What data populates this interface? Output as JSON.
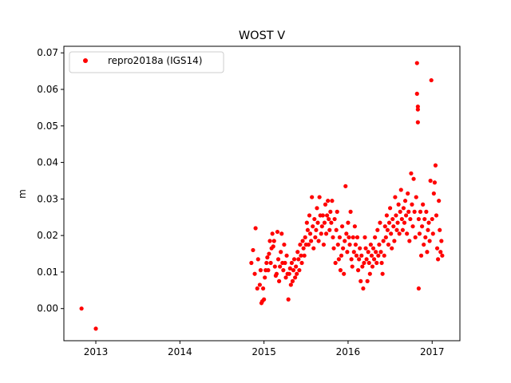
{
  "chart_data": {
    "type": "scatter",
    "title": "WOST V",
    "xlabel": "",
    "ylabel": "m",
    "xlim": [
      2012.62,
      2017.33
    ],
    "ylim": [
      -0.0088,
      0.0718
    ],
    "xticks": [
      2013,
      2014,
      2015,
      2016,
      2017
    ],
    "xtick_labels": [
      "2013",
      "2014",
      "2015",
      "2016",
      "2017"
    ],
    "yticks": [
      0.0,
      0.01,
      0.02,
      0.03,
      0.04,
      0.05,
      0.06,
      0.07
    ],
    "ytick_labels": [
      "0.00",
      "0.01",
      "0.02",
      "0.03",
      "0.04",
      "0.05",
      "0.06",
      "0.07"
    ],
    "grid": false,
    "legend_position": "top-left",
    "colors": {
      "series": "#ff0000",
      "axis": "#000000"
    },
    "series": [
      {
        "name": "repro2018a (IGS14)",
        "marker": "circle",
        "points": [
          [
            2012.83,
            0.0
          ],
          [
            2013.0,
            -0.0055
          ],
          [
            2014.85,
            0.0125
          ],
          [
            2014.87,
            0.016
          ],
          [
            2014.89,
            0.0095
          ],
          [
            2014.9,
            0.022
          ],
          [
            2014.92,
            0.0055
          ],
          [
            2014.93,
            0.0135
          ],
          [
            2014.95,
            0.0065
          ],
          [
            2014.96,
            0.0105
          ],
          [
            2014.97,
            0.0015
          ],
          [
            2014.98,
            0.002
          ],
          [
            2014.99,
            0.0055
          ],
          [
            2015.0,
            0.0025
          ],
          [
            2015.01,
            0.0085
          ],
          [
            2015.02,
            0.0105
          ],
          [
            2015.03,
            0.0125
          ],
          [
            2015.04,
            0.014
          ],
          [
            2015.05,
            0.0105
          ],
          [
            2015.06,
            0.015
          ],
          [
            2015.07,
            0.0185
          ],
          [
            2015.08,
            0.0125
          ],
          [
            2015.09,
            0.0165
          ],
          [
            2015.1,
            0.0205
          ],
          [
            2015.11,
            0.017
          ],
          [
            2015.12,
            0.0185
          ],
          [
            2015.13,
            0.0115
          ],
          [
            2015.14,
            0.009
          ],
          [
            2015.15,
            0.0095
          ],
          [
            2015.16,
            0.021
          ],
          [
            2015.17,
            0.0135
          ],
          [
            2015.18,
            0.0075
          ],
          [
            2015.19,
            0.0115
          ],
          [
            2015.2,
            0.0155
          ],
          [
            2015.21,
            0.0205
          ],
          [
            2015.22,
            0.0125
          ],
          [
            2015.23,
            0.0105
          ],
          [
            2015.24,
            0.0175
          ],
          [
            2015.25,
            0.0125
          ],
          [
            2015.26,
            0.0085
          ],
          [
            2015.27,
            0.0145
          ],
          [
            2015.28,
            0.0095
          ],
          [
            2015.29,
            0.0025
          ],
          [
            2015.3,
            0.0095
          ],
          [
            2015.31,
            0.011
          ],
          [
            2015.32,
            0.0065
          ],
          [
            2015.33,
            0.0125
          ],
          [
            2015.34,
            0.0075
          ],
          [
            2015.35,
            0.0105
          ],
          [
            2015.36,
            0.0135
          ],
          [
            2015.37,
            0.0085
          ],
          [
            2015.38,
            0.0115
          ],
          [
            2015.39,
            0.0095
          ],
          [
            2015.4,
            0.0155
          ],
          [
            2015.41,
            0.0135
          ],
          [
            2015.42,
            0.0105
          ],
          [
            2015.43,
            0.0175
          ],
          [
            2015.44,
            0.0145
          ],
          [
            2015.45,
            0.0125
          ],
          [
            2015.46,
            0.0185
          ],
          [
            2015.47,
            0.0165
          ],
          [
            2015.48,
            0.0145
          ],
          [
            2015.49,
            0.0195
          ],
          [
            2015.5,
            0.0175
          ],
          [
            2015.51,
            0.0235
          ],
          [
            2015.52,
            0.0215
          ],
          [
            2015.53,
            0.0175
          ],
          [
            2015.54,
            0.0255
          ],
          [
            2015.55,
            0.0205
          ],
          [
            2015.56,
            0.0185
          ],
          [
            2015.57,
            0.0305
          ],
          [
            2015.58,
            0.0225
          ],
          [
            2015.59,
            0.0165
          ],
          [
            2015.6,
            0.0245
          ],
          [
            2015.61,
            0.0195
          ],
          [
            2015.62,
            0.0215
          ],
          [
            2015.63,
            0.0275
          ],
          [
            2015.64,
            0.0235
          ],
          [
            2015.65,
            0.0185
          ],
          [
            2015.66,
            0.0305
          ],
          [
            2015.67,
            0.0255
          ],
          [
            2015.68,
            0.0205
          ],
          [
            2015.69,
            0.0225
          ],
          [
            2015.7,
            0.0255
          ],
          [
            2015.71,
            0.0175
          ],
          [
            2015.72,
            0.0235
          ],
          [
            2015.73,
            0.0285
          ],
          [
            2015.74,
            0.0205
          ],
          [
            2015.75,
            0.0255
          ],
          [
            2015.76,
            0.0295
          ],
          [
            2015.77,
            0.0245
          ],
          [
            2015.78,
            0.0215
          ],
          [
            2015.79,
            0.0265
          ],
          [
            2015.8,
            0.0235
          ],
          [
            2015.81,
            0.0295
          ],
          [
            2015.82,
            0.0195
          ],
          [
            2015.83,
            0.0165
          ],
          [
            2015.84,
            0.0245
          ],
          [
            2015.85,
            0.0125
          ],
          [
            2015.86,
            0.0215
          ],
          [
            2015.87,
            0.0265
          ],
          [
            2015.88,
            0.0175
          ],
          [
            2015.89,
            0.0135
          ],
          [
            2015.9,
            0.0195
          ],
          [
            2015.91,
            0.0105
          ],
          [
            2015.92,
            0.0145
          ],
          [
            2015.93,
            0.0225
          ],
          [
            2015.94,
            0.0165
          ],
          [
            2015.95,
            0.0095
          ],
          [
            2015.96,
            0.0185
          ],
          [
            2015.97,
            0.0335
          ],
          [
            2015.98,
            0.0205
          ],
          [
            2015.99,
            0.0155
          ],
          [
            2016.0,
            0.0235
          ],
          [
            2016.01,
            0.0195
          ],
          [
            2016.02,
            0.0175
          ],
          [
            2016.03,
            0.0265
          ],
          [
            2016.04,
            0.0135
          ],
          [
            2016.05,
            0.0115
          ],
          [
            2016.06,
            0.0195
          ],
          [
            2016.07,
            0.0155
          ],
          [
            2016.08,
            0.0225
          ],
          [
            2016.09,
            0.0175
          ],
          [
            2016.1,
            0.0145
          ],
          [
            2016.11,
            0.0195
          ],
          [
            2016.12,
            0.0105
          ],
          [
            2016.13,
            0.0135
          ],
          [
            2016.14,
            0.0165
          ],
          [
            2016.15,
            0.0075
          ],
          [
            2016.16,
            0.0145
          ],
          [
            2016.17,
            0.0115
          ],
          [
            2016.18,
            0.0055
          ],
          [
            2016.19,
            0.0125
          ],
          [
            2016.2,
            0.0195
          ],
          [
            2016.21,
            0.0165
          ],
          [
            2016.22,
            0.0135
          ],
          [
            2016.23,
            0.0075
          ],
          [
            2016.24,
            0.0155
          ],
          [
            2016.25,
            0.0125
          ],
          [
            2016.26,
            0.0095
          ],
          [
            2016.27,
            0.0175
          ],
          [
            2016.28,
            0.0145
          ],
          [
            2016.29,
            0.0115
          ],
          [
            2016.3,
            0.0165
          ],
          [
            2016.31,
            0.0135
          ],
          [
            2016.32,
            0.0195
          ],
          [
            2016.33,
            0.0155
          ],
          [
            2016.34,
            0.0125
          ],
          [
            2016.35,
            0.0215
          ],
          [
            2016.36,
            0.0145
          ],
          [
            2016.37,
            0.0175
          ],
          [
            2016.38,
            0.0235
          ],
          [
            2016.39,
            0.0155
          ],
          [
            2016.4,
            0.0125
          ],
          [
            2016.41,
            0.0095
          ],
          [
            2016.42,
            0.0185
          ],
          [
            2016.43,
            0.0145
          ],
          [
            2016.44,
            0.0225
          ],
          [
            2016.45,
            0.0195
          ],
          [
            2016.46,
            0.0255
          ],
          [
            2016.47,
            0.0215
          ],
          [
            2016.48,
            0.0175
          ],
          [
            2016.49,
            0.0235
          ],
          [
            2016.5,
            0.0275
          ],
          [
            2016.51,
            0.0205
          ],
          [
            2016.52,
            0.0165
          ],
          [
            2016.53,
            0.0245
          ],
          [
            2016.54,
            0.0225
          ],
          [
            2016.55,
            0.0185
          ],
          [
            2016.56,
            0.0305
          ],
          [
            2016.57,
            0.0255
          ],
          [
            2016.58,
            0.0215
          ],
          [
            2016.59,
            0.0235
          ],
          [
            2016.6,
            0.0285
          ],
          [
            2016.61,
            0.0205
          ],
          [
            2016.62,
            0.0265
          ],
          [
            2016.63,
            0.0325
          ],
          [
            2016.64,
            0.0245
          ],
          [
            2016.65,
            0.0215
          ],
          [
            2016.66,
            0.0275
          ],
          [
            2016.67,
            0.0235
          ],
          [
            2016.68,
            0.0295
          ],
          [
            2016.69,
            0.0255
          ],
          [
            2016.7,
            0.0205
          ],
          [
            2016.71,
            0.0315
          ],
          [
            2016.72,
            0.0265
          ],
          [
            2016.73,
            0.0185
          ],
          [
            2016.74,
            0.0245
          ],
          [
            2016.75,
            0.037
          ],
          [
            2016.76,
            0.0285
          ],
          [
            2016.77,
            0.0225
          ],
          [
            2016.78,
            0.0355
          ],
          [
            2016.79,
            0.0265
          ],
          [
            2016.8,
            0.0195
          ],
          [
            2016.81,
            0.0305
          ],
          [
            2016.82,
            0.0588
          ],
          [
            2016.82,
            0.0672
          ],
          [
            2016.83,
            0.0545
          ],
          [
            2016.83,
            0.0553
          ],
          [
            2016.83,
            0.051
          ],
          [
            2016.84,
            0.0055
          ],
          [
            2016.84,
            0.0245
          ],
          [
            2016.85,
            0.0205
          ],
          [
            2016.86,
            0.0265
          ],
          [
            2016.87,
            0.0145
          ],
          [
            2016.88,
            0.0225
          ],
          [
            2016.89,
            0.0285
          ],
          [
            2016.9,
            0.0175
          ],
          [
            2016.91,
            0.0245
          ],
          [
            2016.92,
            0.0195
          ],
          [
            2016.93,
            0.0265
          ],
          [
            2016.94,
            0.0155
          ],
          [
            2016.95,
            0.0215
          ],
          [
            2016.96,
            0.0235
          ],
          [
            2016.97,
            0.0185
          ],
          [
            2016.98,
            0.035
          ],
          [
            2016.99,
            0.0625
          ],
          [
            2017.0,
            0.0245
          ],
          [
            2017.01,
            0.0205
          ],
          [
            2017.02,
            0.0315
          ],
          [
            2017.03,
            0.0345
          ],
          [
            2017.04,
            0.0392
          ],
          [
            2017.05,
            0.0255
          ],
          [
            2017.06,
            0.0165
          ],
          [
            2017.07,
            0.0135
          ],
          [
            2017.08,
            0.0295
          ],
          [
            2017.09,
            0.0215
          ],
          [
            2017.1,
            0.0155
          ],
          [
            2017.11,
            0.0185
          ],
          [
            2017.12,
            0.0145
          ]
        ]
      }
    ]
  }
}
